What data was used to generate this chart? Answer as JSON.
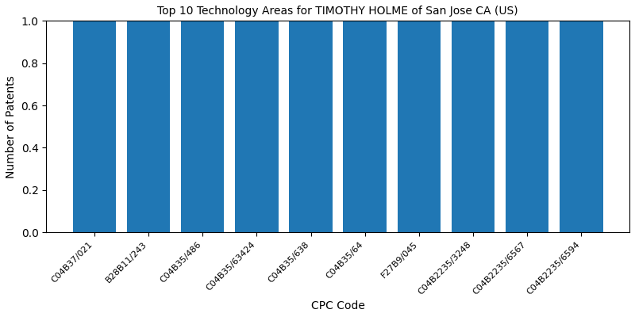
{
  "title": "Top 10 Technology Areas for TIMOTHY HOLME of San Jose CA (US)",
  "xlabel": "CPC Code",
  "ylabel": "Number of Patents",
  "categories": [
    "C04B37/021",
    "B28B11/243",
    "C04B35/486",
    "C04B35/63424",
    "C04B35/638",
    "C04B35/64",
    "F27B9/045",
    "C04B2235/3248",
    "C04B2235/6567",
    "C04B2235/6594"
  ],
  "values": [
    1,
    1,
    1,
    1,
    1,
    1,
    1,
    1,
    1,
    1
  ],
  "bar_color": "#2077b4",
  "ylim": [
    0,
    1.0
  ],
  "bar_width": 0.8,
  "figsize": [
    8.0,
    4.0
  ],
  "dpi": 100,
  "title_fontsize": 10,
  "axis_label_fontsize": 10,
  "tick_fontsize": 8
}
